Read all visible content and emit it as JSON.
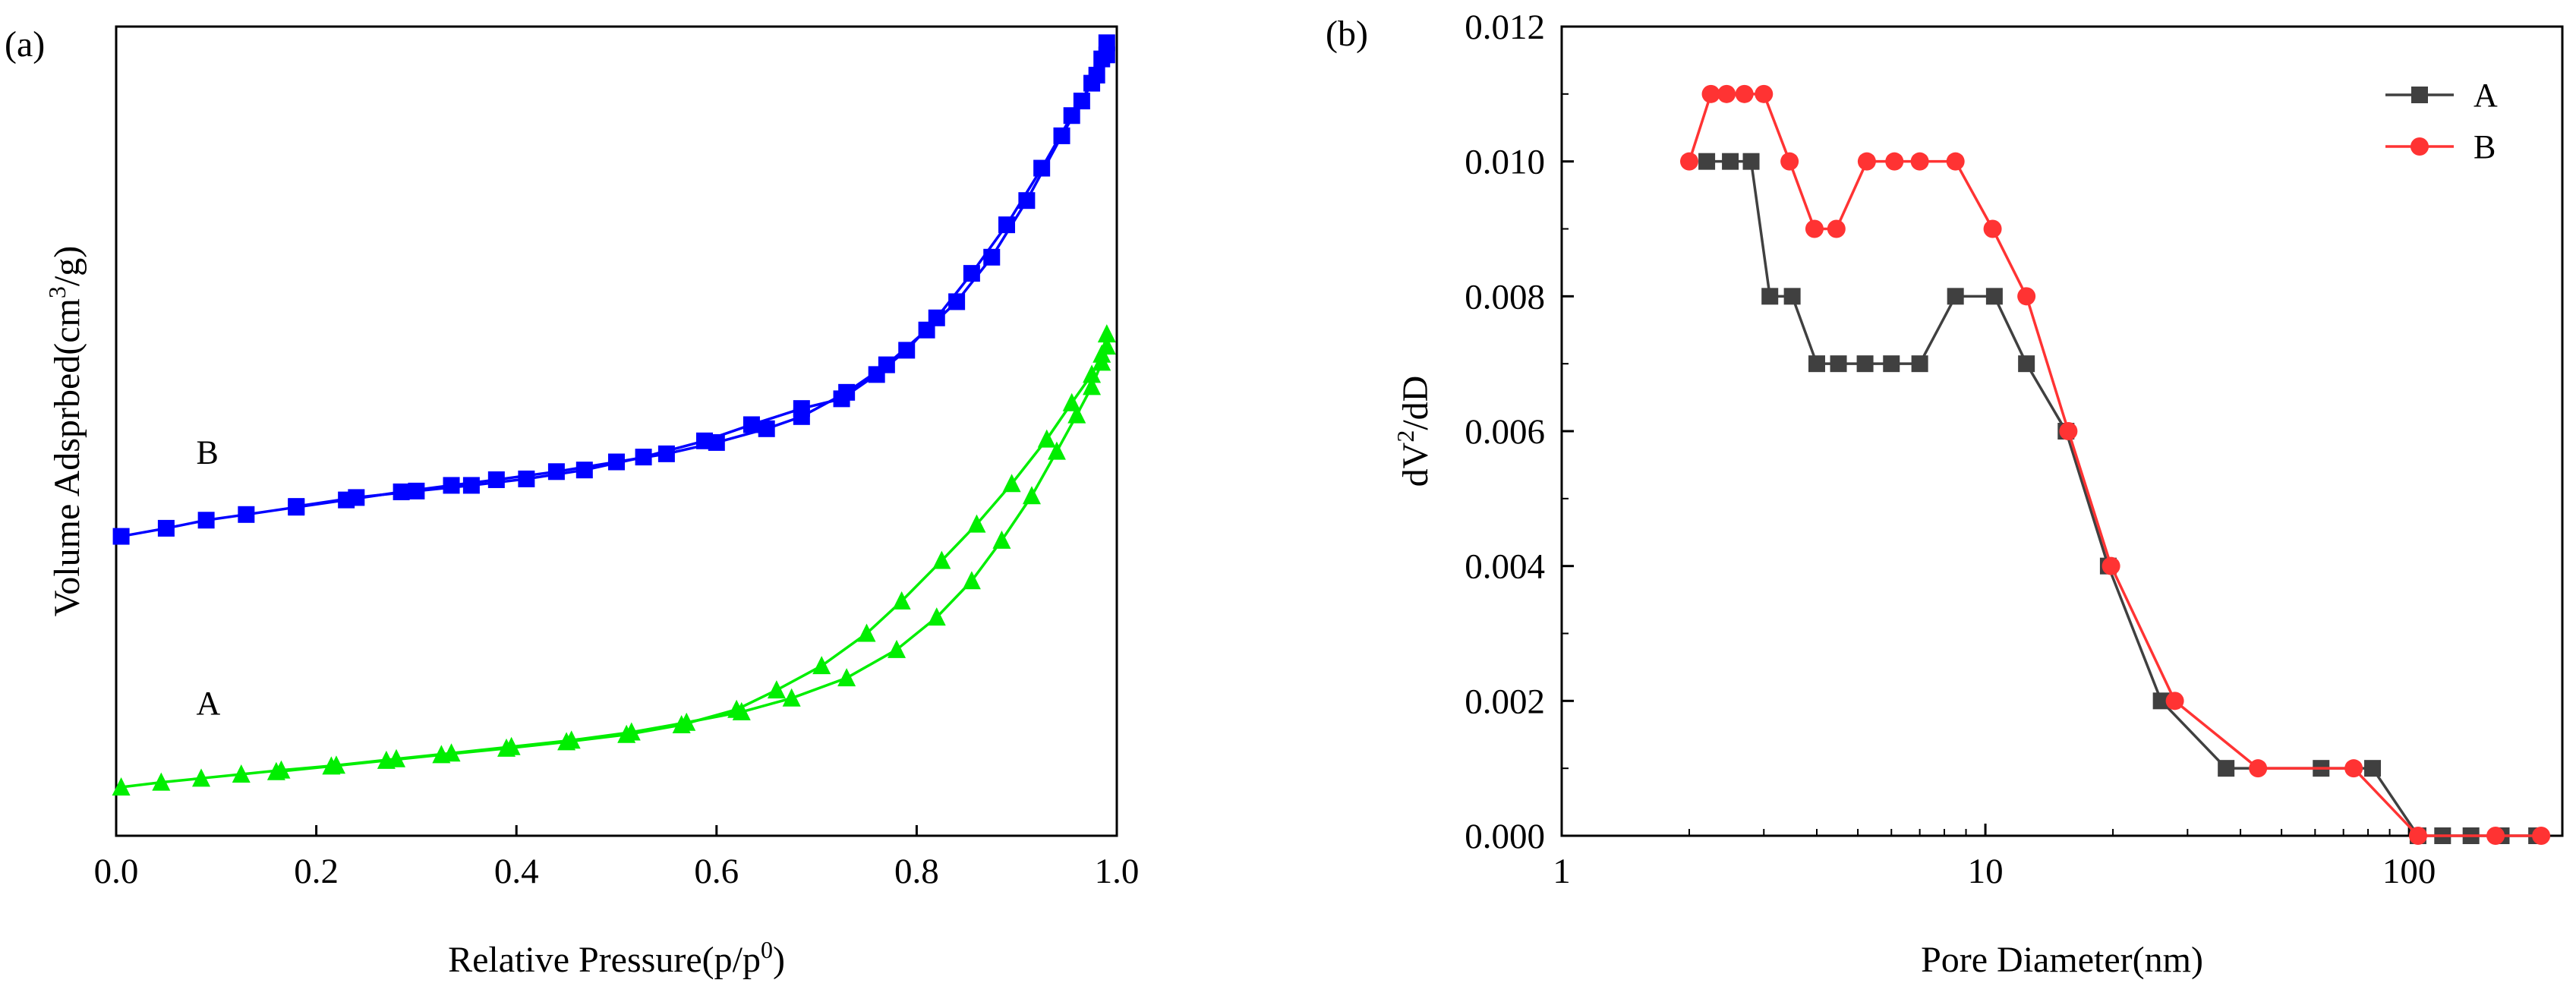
{
  "chart_data": [
    {
      "panel_label": "(a)",
      "type": "line",
      "title": "",
      "xlabel": {
        "main": "Relative Pressure(p/p",
        "sup": "0",
        "tail": ")"
      },
      "ylabel": {
        "main": "Volume Adsprbed(cm",
        "sup": "3",
        "tail": "/g)"
      },
      "xlim": [
        0.0,
        1.0
      ],
      "xticks": [
        0.0,
        0.2,
        0.4,
        0.6,
        0.8,
        1.0
      ],
      "xtick_labels": [
        "0.0",
        "0.2",
        "0.4",
        "0.6",
        "0.8",
        "1.0"
      ],
      "yticks_shown": false,
      "ylim": [
        0,
        100
      ],
      "series": [
        {
          "name": "B",
          "color": "#0000ff",
          "marker": "square",
          "segments": [
            {
              "x": [
                0.005,
                0.05,
                0.09,
                0.13,
                0.18,
                0.23,
                0.285,
                0.335,
                0.38,
                0.44,
                0.5,
                0.55,
                0.6,
                0.65,
                0.685,
                0.73,
                0.77,
                0.81,
                0.84,
                0.875,
                0.91,
                0.945,
                0.965,
                0.98,
                0.99
              ],
              "y": [
                37.0,
                38.0,
                39.0,
                39.7,
                40.6,
                41.5,
                42.5,
                43.3,
                44.0,
                45.0,
                46.2,
                47.2,
                48.6,
                50.3,
                51.8,
                54.8,
                58.2,
                62.5,
                66.0,
                71.5,
                78.5,
                86.5,
                90.8,
                94.0,
                96.5
              ]
            },
            {
              "x": [
                0.99,
                0.985,
                0.975,
                0.955,
                0.925,
                0.89,
                0.855,
                0.82,
                0.79,
                0.76,
                0.725,
                0.685,
                0.635,
                0.588,
                0.527,
                0.468,
                0.41,
                0.355,
                0.3,
                0.24,
                0.18
              ],
              "y": [
                98.0,
                96.0,
                93.0,
                89.0,
                82.5,
                75.5,
                69.5,
                64.0,
                60.0,
                57.0,
                54.0,
                52.8,
                50.8,
                48.8,
                46.8,
                45.2,
                44.1,
                43.3,
                42.6,
                41.8,
                40.7
              ]
            }
          ]
        },
        {
          "name": "A",
          "color": "#00ee00",
          "marker": "triangle",
          "segments": [
            {
              "x": [
                0.005,
                0.045,
                0.085,
                0.125,
                0.165,
                0.22,
                0.28,
                0.335,
                0.395,
                0.455,
                0.515,
                0.57,
                0.625,
                0.675,
                0.73,
                0.78,
                0.82,
                0.855,
                0.885,
                0.915,
                0.94,
                0.96,
                0.975,
                0.985,
                0.99
              ],
              "y": [
                6.0,
                6.6,
                7.1,
                7.6,
                8.1,
                8.7,
                9.5,
                10.2,
                11.0,
                11.8,
                12.8,
                14.0,
                15.3,
                17.0,
                19.5,
                23.0,
                27.0,
                31.5,
                36.5,
                42.0,
                47.5,
                52.0,
                55.5,
                58.5,
                60.5
              ]
            },
            {
              "x": [
                0.99,
                0.985,
                0.975,
                0.955,
                0.93,
                0.895,
                0.86,
                0.825,
                0.785,
                0.75,
                0.705,
                0.66,
                0.62,
                0.565,
                0.51,
                0.45,
                0.39,
                0.325,
                0.27,
                0.215,
                0.16
              ],
              "y": [
                62.0,
                59.5,
                57.0,
                53.5,
                49.0,
                43.5,
                38.5,
                34.0,
                29.0,
                25.0,
                21.0,
                18.0,
                15.6,
                13.7,
                12.5,
                11.6,
                10.8,
                10.0,
                9.3,
                8.6,
                7.9
              ]
            }
          ]
        }
      ],
      "annotations": [
        {
          "text": "B",
          "x": 0.08,
          "y": 46
        },
        {
          "text": "A",
          "x": 0.08,
          "y": 15
        }
      ]
    },
    {
      "panel_label": "(b)",
      "type": "line",
      "title": "",
      "xlabel": "Pore Diameter(nm)",
      "ylabel": {
        "main": "dV",
        "sup": "2",
        "tail": "/dD"
      },
      "xscale": "log",
      "xlim": [
        1,
        230
      ],
      "xticks": [
        1,
        10,
        100
      ],
      "xtick_labels": [
        "1",
        "10",
        "100"
      ],
      "ylim": [
        0.0,
        0.012
      ],
      "yticks": [
        0.0,
        0.002,
        0.004,
        0.006,
        0.008,
        0.01,
        0.012
      ],
      "ytick_labels": [
        "0.000",
        "0.002",
        "0.004",
        "0.006",
        "0.008",
        "0.010",
        "0.012"
      ],
      "legend": {
        "position": "top-right",
        "entries": [
          "A",
          "B"
        ]
      },
      "series": [
        {
          "name": "A",
          "color": "#404040",
          "marker": "square",
          "x": [
            2.2,
            2.5,
            2.8,
            3.1,
            3.5,
            4.0,
            4.5,
            5.2,
            6.0,
            7.0,
            8.5,
            10.5,
            12.5,
            15.5,
            19.5,
            26,
            37,
            62,
            82,
            105,
            120,
            140,
            165,
            200
          ],
          "y": [
            0.01,
            0.01,
            0.01,
            0.008,
            0.008,
            0.007,
            0.007,
            0.007,
            0.007,
            0.007,
            0.008,
            0.008,
            0.007,
            0.006,
            0.004,
            0.002,
            0.001,
            0.001,
            0.001,
            0.0,
            0.0,
            0.0,
            0.0,
            0.0
          ]
        },
        {
          "name": "B",
          "color": "#ff3333",
          "marker": "circle",
          "x": [
            2.0,
            2.25,
            2.45,
            2.7,
            3.0,
            3.45,
            3.95,
            4.45,
            5.25,
            6.1,
            7.0,
            8.5,
            10.4,
            12.5,
            15.7,
            19.8,
            28,
            44,
            74,
            105,
            160,
            205
          ],
          "y": [
            0.01,
            0.011,
            0.011,
            0.011,
            0.011,
            0.01,
            0.009,
            0.009,
            0.01,
            0.01,
            0.01,
            0.01,
            0.009,
            0.008,
            0.006,
            0.004,
            0.002,
            0.001,
            0.001,
            0.0,
            0.0,
            0.0
          ]
        }
      ]
    }
  ]
}
